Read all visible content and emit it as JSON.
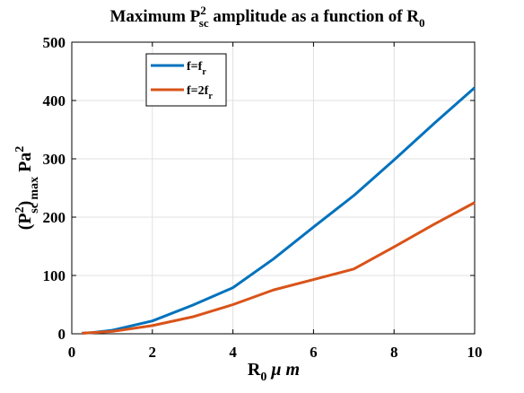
{
  "chart_data": {
    "type": "line",
    "title": {
      "prefix": "Maximum P",
      "sup": "2",
      "sub": "sc",
      "middle": " amplitude as a function of R",
      "sub2": "0"
    },
    "xlabel": {
      "main": "R",
      "sub": "0",
      "rest": " μ m"
    },
    "ylabel": {
      "open": "(P",
      "sup": "2",
      "close": ")",
      "sub": "sc max",
      "unit": " Pa",
      "unitsup": "2"
    },
    "xlim": [
      0,
      10
    ],
    "ylim": [
      0,
      500
    ],
    "xticks": [
      "0",
      "2",
      "4",
      "6",
      "8",
      "10"
    ],
    "yticks": [
      "0",
      "100",
      "200",
      "300",
      "400",
      "500"
    ],
    "grid": true,
    "legend_position": "top-left",
    "series": [
      {
        "name": {
          "main": "f=f",
          "sub": "r"
        },
        "color": "#0072BD",
        "x": [
          0.25,
          0.5,
          1,
          2,
          3,
          4,
          5,
          6,
          7,
          8,
          9,
          10
        ],
        "y": [
          1,
          2,
          6,
          22,
          49,
          79,
          128,
          183,
          237,
          298,
          361,
          422
        ]
      },
      {
        "name": {
          "main": "f=2f",
          "sub": "r"
        },
        "color": "#D95319",
        "x": [
          0.25,
          0.5,
          1,
          2,
          3,
          4,
          5,
          6,
          7,
          8,
          9,
          10
        ],
        "y": [
          1,
          2,
          4,
          14,
          29,
          50,
          75,
          93,
          111,
          149,
          188,
          225
        ]
      }
    ]
  }
}
